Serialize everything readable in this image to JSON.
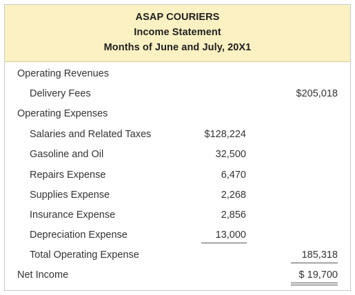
{
  "header": {
    "company": "ASAP COURIERS",
    "statement": "Income Statement",
    "period": "Months of June and July, 20X1"
  },
  "revenues": {
    "heading": "Operating Revenues",
    "delivery_label": "Delivery Fees",
    "delivery_amount": "$205,018"
  },
  "expenses": {
    "heading": "Operating Expenses",
    "items": [
      {
        "label": "Salaries and Related Taxes",
        "amount": "$128,224"
      },
      {
        "label": "Gasoline and Oil",
        "amount": "32,500"
      },
      {
        "label": "Repairs Expense",
        "amount": "6,470"
      },
      {
        "label": "Supplies Expense",
        "amount": "2,268"
      },
      {
        "label": "Insurance Expense",
        "amount": "2,856"
      },
      {
        "label": "Depreciation Expense",
        "amount": "13,000"
      }
    ],
    "total_label": "Total Operating Expense",
    "total_amount": "185,318"
  },
  "net": {
    "label": "Net Income",
    "amount": "$ 19,700"
  }
}
